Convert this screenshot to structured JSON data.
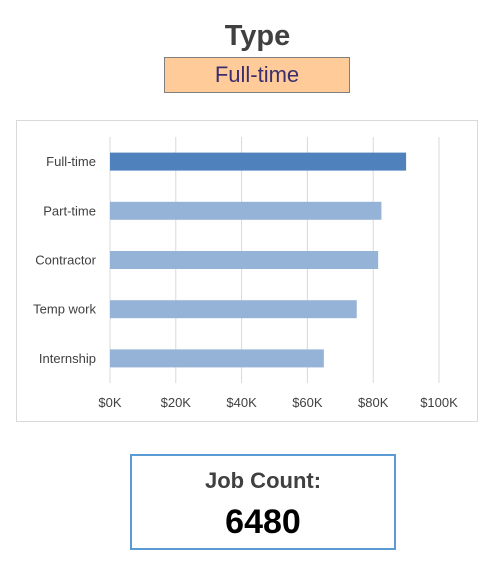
{
  "filter": {
    "title": "Type",
    "selected": "Full-time"
  },
  "kpi": {
    "label": "Job Count:",
    "value": "6480"
  },
  "colors": {
    "highlight_bar": "#4f81bd",
    "bar": "#95b3d7",
    "slicer_fill": "#ffcc99",
    "kpi_border": "#5b9bd5"
  },
  "chart_data": {
    "type": "bar",
    "orientation": "horizontal",
    "title": "",
    "xlabel": "",
    "ylabel": "",
    "categories": [
      "Full-time",
      "Part-time",
      "Contractor",
      "Temp work",
      "Internship"
    ],
    "values": [
      90000,
      82500,
      81500,
      75000,
      65000
    ],
    "highlighted": "Full-time",
    "xlim": [
      0,
      100000
    ],
    "x_ticks": [
      0,
      20000,
      40000,
      60000,
      80000,
      100000
    ],
    "x_tick_labels": [
      "$0K",
      "$20K",
      "$40K",
      "$60K",
      "$80K",
      "$100K"
    ],
    "grid": "vertical",
    "legend": "none"
  }
}
